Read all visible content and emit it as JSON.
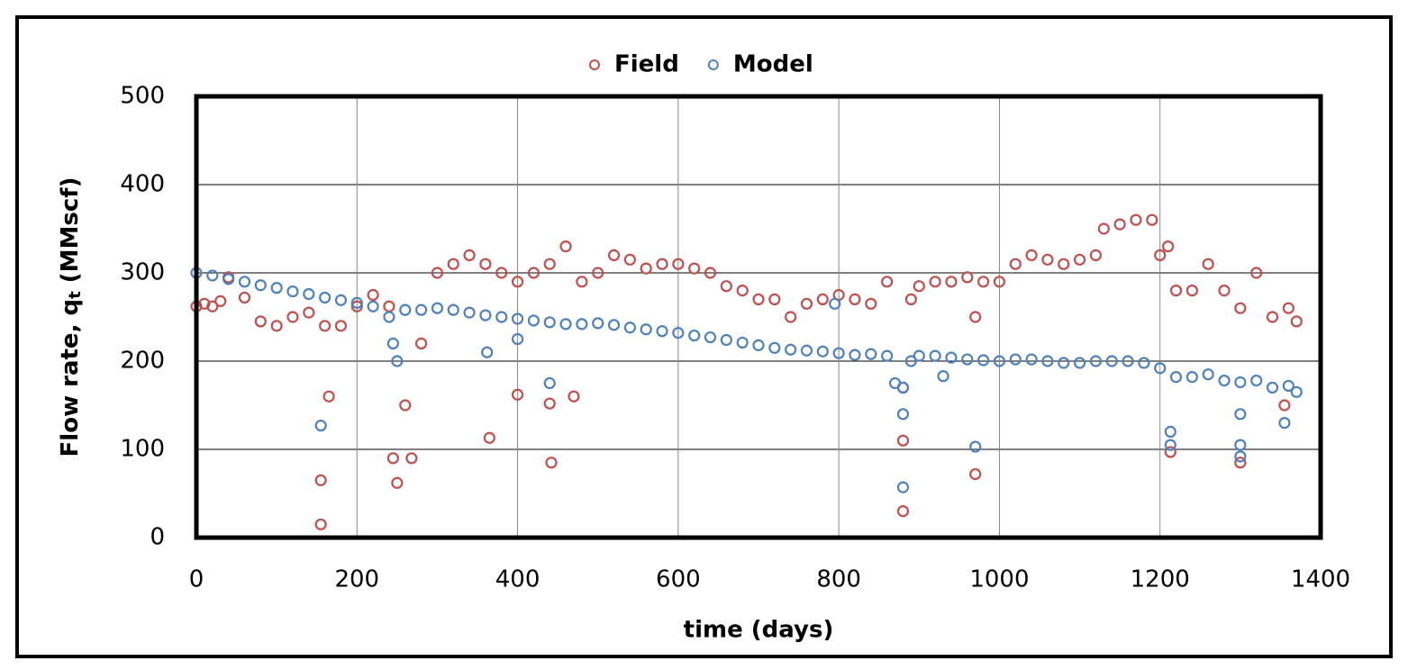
{
  "chart_data": {
    "type": "scatter",
    "xlabel": "time (days)",
    "ylabel": {
      "text": "Flow rate, q",
      "subscript": "t",
      "suffix": " (MMscf)"
    },
    "xlim": [
      0,
      1400
    ],
    "xticks": [
      0,
      200,
      400,
      600,
      800,
      1000,
      1200,
      1400
    ],
    "ylim": [
      0,
      500
    ],
    "yticks": [
      0,
      100,
      200,
      300,
      400,
      500
    ],
    "grid": true,
    "legend": "top",
    "series": [
      {
        "name": "Field",
        "color": "#c0504d",
        "x": [
          0,
          10,
          20,
          30,
          40,
          60,
          80,
          100,
          120,
          140,
          160,
          180,
          200,
          220,
          240,
          260,
          280,
          300,
          320,
          340,
          360,
          380,
          400,
          420,
          440,
          460,
          480,
          500,
          520,
          540,
          560,
          580,
          600,
          620,
          640,
          660,
          680,
          700,
          720,
          740,
          760,
          780,
          800,
          820,
          840,
          860,
          880,
          890,
          900,
          920,
          940,
          960,
          980,
          1000,
          1020,
          1040,
          1060,
          1080,
          1100,
          1120,
          1130,
          1150,
          1170,
          1190,
          1200,
          1210,
          1220,
          1240,
          1260,
          1280,
          1300,
          1320,
          1340,
          1360,
          1370,
          155,
          155,
          165,
          245,
          250,
          268,
          365,
          400,
          440,
          442,
          470,
          880,
          880,
          970,
          970,
          1213,
          1300,
          1355
        ],
        "values": [
          262,
          265,
          262,
          268,
          295,
          272,
          245,
          240,
          250,
          255,
          240,
          240,
          262,
          275,
          262,
          150,
          220,
          300,
          310,
          320,
          310,
          300,
          290,
          300,
          310,
          330,
          290,
          300,
          320,
          315,
          305,
          310,
          310,
          305,
          300,
          285,
          280,
          270,
          270,
          250,
          265,
          270,
          275,
          270,
          265,
          290,
          170,
          270,
          285,
          290,
          290,
          295,
          290,
          290,
          310,
          320,
          315,
          310,
          315,
          320,
          350,
          355,
          360,
          360,
          320,
          330,
          280,
          280,
          310,
          280,
          260,
          300,
          250,
          260,
          245,
          15,
          65,
          160,
          90,
          62,
          90,
          113,
          162,
          152,
          85,
          160,
          30,
          110,
          72,
          250,
          97,
          85,
          150
        ]
      },
      {
        "name": "Model",
        "color": "#4f81bd",
        "x": [
          0,
          20,
          40,
          60,
          80,
          100,
          120,
          140,
          160,
          180,
          200,
          220,
          240,
          260,
          280,
          300,
          320,
          340,
          360,
          380,
          400,
          420,
          440,
          460,
          480,
          500,
          520,
          540,
          560,
          580,
          600,
          620,
          640,
          660,
          680,
          700,
          720,
          740,
          760,
          780,
          800,
          820,
          840,
          860,
          870,
          880,
          890,
          900,
          920,
          940,
          960,
          980,
          1000,
          1020,
          1040,
          1060,
          1080,
          1100,
          1120,
          1140,
          1160,
          1180,
          1200,
          1220,
          1240,
          1260,
          1280,
          1300,
          1320,
          1340,
          1360,
          1370,
          155,
          245,
          250,
          362,
          400,
          440,
          795,
          880,
          880,
          930,
          970,
          1213,
          1213,
          1300,
          1300,
          1300,
          1355
        ],
        "values": [
          300,
          297,
          293,
          290,
          286,
          283,
          279,
          276,
          272,
          269,
          266,
          262,
          250,
          258,
          258,
          260,
          258,
          255,
          252,
          250,
          248,
          246,
          244,
          242,
          242,
          243,
          241,
          238,
          236,
          234,
          232,
          229,
          227,
          224,
          221,
          218,
          215,
          213,
          212,
          211,
          209,
          207,
          208,
          206,
          175,
          170,
          200,
          206,
          206,
          204,
          202,
          201,
          200,
          202,
          202,
          200,
          198,
          198,
          200,
          200,
          200,
          198,
          192,
          182,
          182,
          185,
          178,
          176,
          178,
          170,
          172,
          165,
          127,
          220,
          200,
          210,
          225,
          175,
          265,
          57,
          140,
          183,
          103,
          120,
          105,
          140,
          105,
          92,
          130
        ]
      }
    ]
  }
}
